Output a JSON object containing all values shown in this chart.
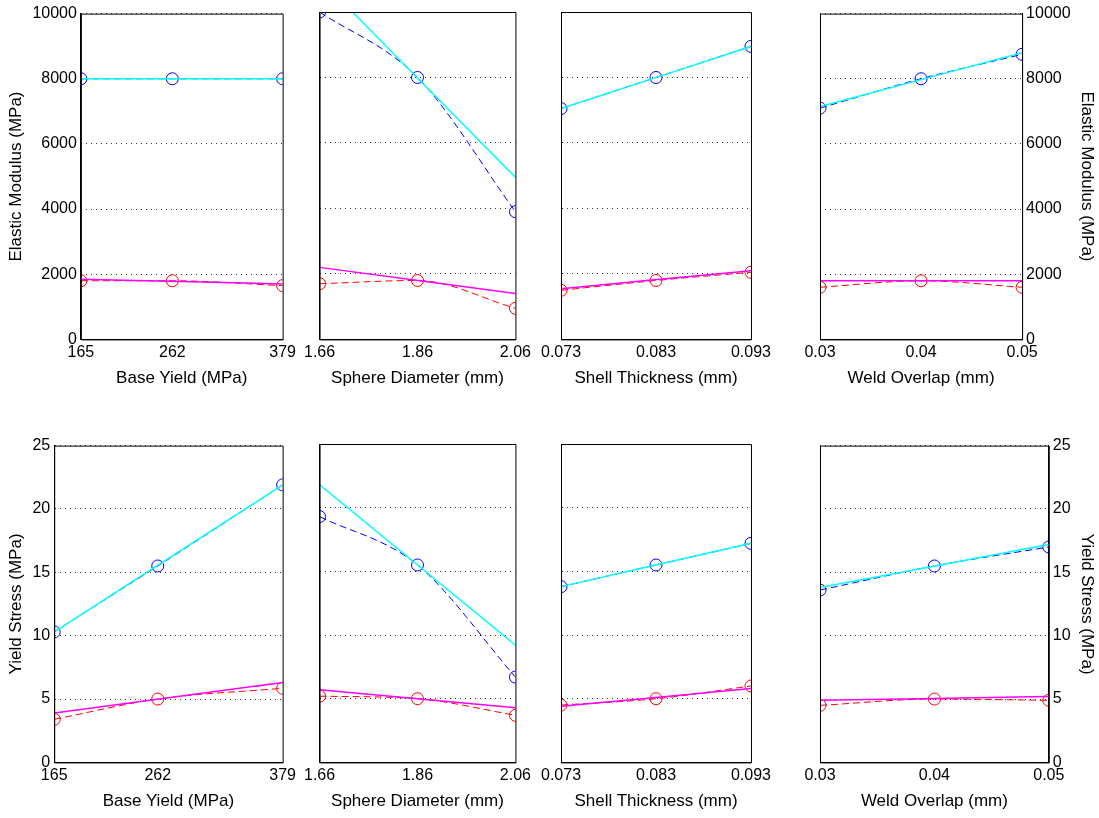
{
  "chart_data": [
    {
      "type": "line",
      "xlabel": "Base Yield (MPa)",
      "ylabel": "Elastic Modulus (MPa)",
      "xlim": [
        165,
        379
      ],
      "xticks": [
        165,
        262,
        379
      ],
      "ylim": [
        0,
        10000
      ],
      "yticks": [
        0,
        2000,
        4000,
        6000,
        8000,
        10000
      ],
      "grid": "y",
      "x": [
        165,
        262,
        379
      ],
      "series": [
        {
          "color": "#0000ff",
          "values": [
            8000,
            8000,
            8000
          ],
          "line_style": "dashed",
          "marker": "circle"
        },
        {
          "color": "#00ffff",
          "values": [
            8000,
            8000,
            8000
          ],
          "line_style": "solid",
          "marker": "none"
        },
        {
          "color": "#ff0000",
          "values": [
            1800,
            1800,
            1650
          ],
          "line_style": "dashed",
          "marker": "circle"
        },
        {
          "color": "#ff00ff",
          "x": [
            165,
            379
          ],
          "values": [
            1850,
            1700
          ],
          "line_style": "solid",
          "marker": "none"
        }
      ]
    },
    {
      "type": "line",
      "xlabel": "Sphere Diameter (mm)",
      "xlim": [
        1.66,
        2.06
      ],
      "xticks": [
        1.66,
        1.86,
        2.06
      ],
      "ylim": [
        0,
        10000
      ],
      "yticks": [
        0,
        2000,
        4000,
        6000,
        8000,
        10000
      ],
      "grid": "y",
      "tick_labels": "x",
      "x": [
        1.66,
        1.86,
        2.06
      ],
      "series": [
        {
          "color": "#0000ff",
          "values": [
            10000,
            8000,
            3900
          ],
          "line_style": "dashed",
          "marker": "circle"
        },
        {
          "color": "#00ffff",
          "x": [
            1.727,
            2.06
          ],
          "values": [
            10000,
            4950
          ],
          "line_style": "solid",
          "marker": "none"
        },
        {
          "color": "#ff0000",
          "values": [
            1700,
            1800,
            950
          ],
          "line_style": "dashed",
          "marker": "circle"
        },
        {
          "color": "#ff00ff",
          "x": [
            1.66,
            2.06
          ],
          "values": [
            2200,
            1400
          ],
          "line_style": "solid",
          "marker": "none"
        }
      ]
    },
    {
      "type": "line",
      "xlabel": "Shell Thickness (mm)",
      "xlim": [
        0.073,
        0.093
      ],
      "xticks": [
        0.073,
        0.083,
        0.093
      ],
      "ylim": [
        0,
        10000
      ],
      "yticks": [
        0,
        2000,
        4000,
        6000,
        8000,
        10000
      ],
      "grid": "y",
      "tick_labels": "x",
      "x": [
        0.073,
        0.083,
        0.093
      ],
      "series": [
        {
          "color": "#0000ff",
          "values": [
            7050,
            8000,
            8950
          ],
          "line_style": "dashed",
          "marker": "circle"
        },
        {
          "color": "#00ffff",
          "x": [
            0.073,
            0.093
          ],
          "values": [
            7050,
            8950
          ],
          "line_style": "solid",
          "marker": "none"
        },
        {
          "color": "#ff0000",
          "values": [
            1500,
            1800,
            2050
          ],
          "line_style": "dashed",
          "marker": "circle"
        },
        {
          "color": "#ff00ff",
          "x": [
            0.073,
            0.093
          ],
          "values": [
            1550,
            2100
          ],
          "line_style": "solid",
          "marker": "none"
        }
      ]
    },
    {
      "type": "line",
      "xlabel": "Weld Overlap (mm)",
      "y2label": "Elastic Modulus (MPa)",
      "xlim": [
        0.03,
        0.05
      ],
      "xticks": [
        0.03,
        0.04,
        0.05
      ],
      "y2lim": [
        0,
        10000
      ],
      "y2ticks": [
        0,
        2000,
        4000,
        6000,
        8000,
        10000
      ],
      "grid": "y",
      "x": [
        0.03,
        0.04,
        0.05
      ],
      "series": [
        {
          "color": "#0000ff",
          "values": [
            7100,
            8000,
            8750
          ],
          "line_style": "dashed",
          "marker": "circle",
          "axis": "y2"
        },
        {
          "color": "#00ffff",
          "x": [
            0.03,
            0.05
          ],
          "values": [
            7150,
            8800
          ],
          "line_style": "solid",
          "marker": "none",
          "axis": "y2"
        },
        {
          "color": "#ff0000",
          "values": [
            1600,
            1800,
            1600
          ],
          "line_style": "dashed",
          "marker": "circle",
          "axis": "y2"
        },
        {
          "color": "#ff00ff",
          "x": [
            0.03,
            0.05
          ],
          "values": [
            1800,
            1800
          ],
          "line_style": "solid",
          "marker": "none",
          "axis": "y2"
        }
      ]
    },
    {
      "type": "line",
      "xlabel": "Base Yield (MPa)",
      "ylabel": "Yield Stress (MPa)",
      "xlim": [
        165,
        379
      ],
      "xticks": [
        165,
        262,
        379
      ],
      "ylim": [
        0,
        25
      ],
      "yticks": [
        0,
        5,
        10,
        15,
        20,
        25
      ],
      "grid": "y",
      "x": [
        165,
        262,
        379
      ],
      "series": [
        {
          "color": "#0000ff",
          "values": [
            10.3,
            15.5,
            21.9
          ],
          "line_style": "dashed",
          "marker": "circle"
        },
        {
          "color": "#00ffff",
          "x": [
            165,
            379
          ],
          "values": [
            10.3,
            21.9
          ],
          "line_style": "solid",
          "marker": "none"
        },
        {
          "color": "#ff0000",
          "values": [
            3.4,
            5.0,
            5.85
          ],
          "line_style": "dashed",
          "marker": "circle"
        },
        {
          "color": "#ff00ff",
          "x": [
            165,
            379
          ],
          "values": [
            3.9,
            6.3
          ],
          "line_style": "solid",
          "marker": "none"
        }
      ]
    },
    {
      "type": "line",
      "xlabel": "Sphere Diameter (mm)",
      "xlim": [
        1.66,
        2.06
      ],
      "xticks": [
        1.66,
        1.86,
        2.06
      ],
      "ylim": [
        0,
        25
      ],
      "yticks": [
        0,
        5,
        10,
        15,
        20,
        25
      ],
      "grid": "y",
      "tick_labels": "x",
      "x": [
        1.66,
        1.86,
        2.06
      ],
      "series": [
        {
          "color": "#0000ff",
          "values": [
            19.3,
            15.5,
            6.7
          ],
          "line_style": "dashed",
          "marker": "circle"
        },
        {
          "color": "#00ffff",
          "x": [
            1.66,
            2.06
          ],
          "values": [
            21.8,
            9.2
          ],
          "line_style": "solid",
          "marker": "none"
        },
        {
          "color": "#ff0000",
          "values": [
            5.2,
            5.0,
            3.7
          ],
          "line_style": "dashed",
          "marker": "circle"
        },
        {
          "color": "#ff00ff",
          "x": [
            1.66,
            2.06
          ],
          "values": [
            5.7,
            4.3
          ],
          "line_style": "solid",
          "marker": "none"
        }
      ]
    },
    {
      "type": "line",
      "xlabel": "Shell Thickness (mm)",
      "xlim": [
        0.073,
        0.093
      ],
      "xticks": [
        0.073,
        0.083,
        0.093
      ],
      "ylim": [
        0,
        25
      ],
      "yticks": [
        0,
        5,
        10,
        15,
        20,
        25
      ],
      "grid": "y",
      "tick_labels": "x",
      "x": [
        0.073,
        0.083,
        0.093
      ],
      "series": [
        {
          "color": "#0000ff",
          "values": [
            13.8,
            15.5,
            17.2
          ],
          "line_style": "dashed",
          "marker": "circle"
        },
        {
          "color": "#00ffff",
          "x": [
            0.073,
            0.093
          ],
          "values": [
            13.8,
            17.2
          ],
          "line_style": "solid",
          "marker": "none"
        },
        {
          "color": "#ff0000",
          "values": [
            4.5,
            5.0,
            6.0
          ],
          "line_style": "dashed",
          "marker": "circle"
        },
        {
          "color": "#ff00ff",
          "x": [
            0.073,
            0.093
          ],
          "values": [
            4.4,
            5.8
          ],
          "line_style": "solid",
          "marker": "none"
        }
      ]
    },
    {
      "type": "line",
      "xlabel": "Weld Overlap (mm)",
      "y2label": "Yield Stress (MPa)",
      "xlim": [
        0.03,
        0.05
      ],
      "xticks": [
        0.03,
        0.04,
        0.05
      ],
      "y2lim": [
        0,
        25
      ],
      "y2ticks": [
        0,
        5,
        10,
        15,
        20,
        25
      ],
      "grid": "y",
      "x": [
        0.03,
        0.04,
        0.05
      ],
      "series": [
        {
          "color": "#0000ff",
          "values": [
            13.6,
            15.5,
            17.0
          ],
          "line_style": "dashed",
          "marker": "circle",
          "axis": "y2"
        },
        {
          "color": "#00ffff",
          "x": [
            0.03,
            0.05
          ],
          "values": [
            13.8,
            17.2
          ],
          "line_style": "solid",
          "marker": "none",
          "axis": "y2"
        },
        {
          "color": "#ff0000",
          "values": [
            4.5,
            5.0,
            4.9
          ],
          "line_style": "dashed",
          "marker": "circle",
          "axis": "y2"
        },
        {
          "color": "#ff00ff",
          "x": [
            0.03,
            0.05
          ],
          "values": [
            4.9,
            5.2
          ],
          "line_style": "solid",
          "marker": "none",
          "axis": "y2"
        }
      ]
    }
  ]
}
